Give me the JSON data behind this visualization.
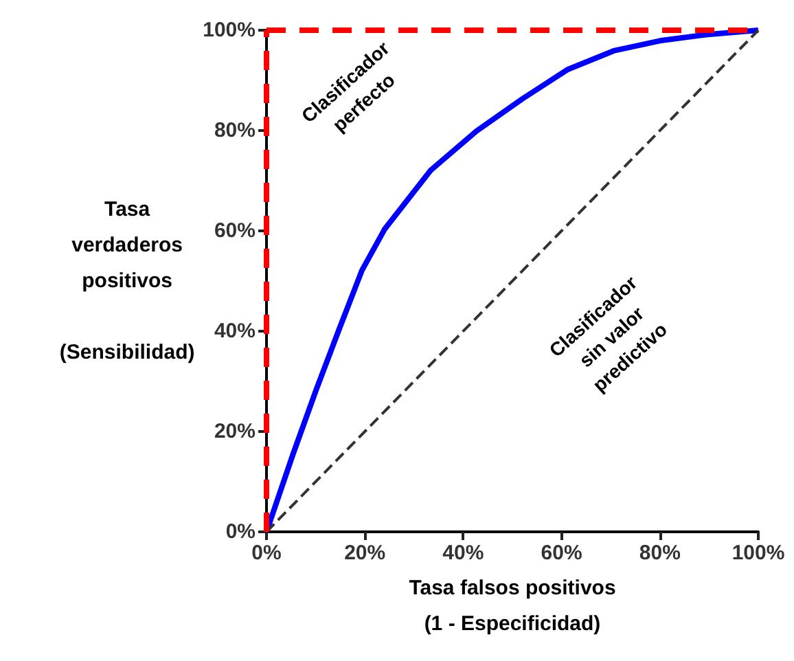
{
  "chart_data": {
    "type": "line",
    "xlabel": "Tasa falsos positivos\n(1 - Especificidad)",
    "ylabel": "Tasa\nverdaderos\npositivos\n\n(Sensibilidad)",
    "xlim": [
      0,
      100
    ],
    "ylim": [
      0,
      100
    ],
    "xticks": [
      {
        "value": 0,
        "label": "0%"
      },
      {
        "value": 20,
        "label": "20%"
      },
      {
        "value": 40,
        "label": "40%"
      },
      {
        "value": 60,
        "label": "60%"
      },
      {
        "value": 80,
        "label": "80%"
      },
      {
        "value": 100,
        "label": "100%"
      }
    ],
    "yticks": [
      {
        "value": 0,
        "label": "0%"
      },
      {
        "value": 20,
        "label": "20%"
      },
      {
        "value": 40,
        "label": "40%"
      },
      {
        "value": 60,
        "label": "60%"
      },
      {
        "value": 80,
        "label": "80%"
      },
      {
        "value": 100,
        "label": "100%"
      }
    ],
    "grid": false,
    "marker": "none",
    "series": [
      {
        "color": "#0000ff",
        "line_style": "solid",
        "x": [
          0,
          5.4,
          10.1,
          14.7,
          19.4,
          24,
          33.4,
          42.7,
          52,
          61.3,
          70.6,
          80,
          89.3,
          100
        ],
        "values": [
          0,
          15.5,
          28.3,
          40.2,
          52.1,
          60.3,
          72.1,
          79.9,
          86.3,
          92.2,
          95.9,
          97.9,
          99.1,
          100
        ]
      },
      {
        "color": "#333333",
        "line_style": "dashed",
        "x": [
          0,
          100
        ],
        "values": [
          0,
          100
        ]
      }
    ],
    "ref_lines": [
      {
        "axis": "x",
        "value": 0,
        "color": "#ff0000",
        "line_style": "dashed"
      },
      {
        "axis": "y",
        "value": 100,
        "color": "#ff0000",
        "line_style": "dashed"
      }
    ],
    "annotations": [
      "Clasificador\nperfecto",
      "Clasificador\nsin valor\npredictivo"
    ]
  }
}
